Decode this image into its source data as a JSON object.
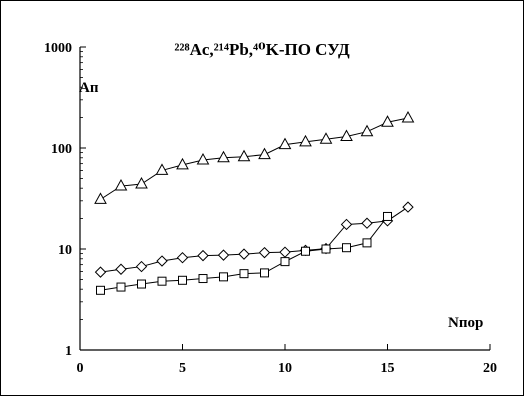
{
  "chart_data": {
    "type": "line",
    "title": "²²⁸Ac,²¹⁴Pb,⁴⁰K-ПО СУД",
    "xlabel": "Nпор",
    "ylabel": "Aп",
    "y_scale": "log",
    "xlim": [
      0,
      20
    ],
    "ylim": [
      1,
      1000
    ],
    "x_ticks": [
      "0",
      "5",
      "10",
      "15",
      "20"
    ],
    "y_ticks": [
      "1",
      "10",
      "100",
      "1000"
    ],
    "grid": false,
    "legend": "none",
    "series": [
      {
        "marker": "triangle",
        "x": [
          1,
          2,
          3,
          4,
          5,
          6,
          7,
          8,
          9,
          10,
          11,
          12,
          13,
          14,
          15,
          16
        ],
        "y": [
          31,
          42,
          44,
          60,
          68,
          76,
          80,
          82,
          86,
          108,
          115,
          122,
          130,
          145,
          180,
          198
        ]
      },
      {
        "marker": "diamond",
        "x": [
          1,
          2,
          3,
          4,
          5,
          6,
          7,
          8,
          9,
          10,
          11,
          12,
          13,
          14,
          15,
          16
        ],
        "y": [
          5.9,
          6.3,
          6.7,
          7.6,
          8.2,
          8.6,
          8.7,
          8.9,
          9.2,
          9.3,
          9.7,
          10.1,
          17.5,
          18.0,
          19.0,
          26.0
        ]
      },
      {
        "marker": "square",
        "x": [
          1,
          2,
          3,
          4,
          5,
          6,
          7,
          8,
          9,
          10,
          11,
          12,
          13,
          14,
          15
        ],
        "y": [
          3.9,
          4.2,
          4.5,
          4.8,
          4.9,
          5.1,
          5.3,
          5.7,
          5.8,
          7.5,
          9.5,
          10.0,
          10.3,
          11.5,
          21.0
        ]
      }
    ],
    "colors": {
      "line": "#000000",
      "marker_fill": "#ffffff"
    }
  }
}
